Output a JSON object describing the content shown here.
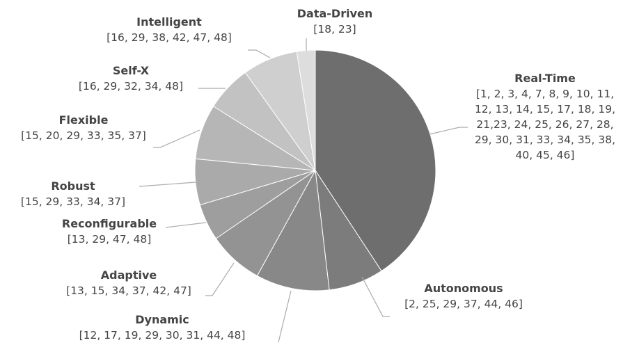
{
  "chart_data": {
    "type": "pie",
    "categories": [
      "Real-Time",
      "Autonomous",
      "Dynamic",
      "Adaptive",
      "Reconfigurable",
      "Robust",
      "Flexible",
      "Self-X",
      "Intelligent",
      "Data-Driven"
    ],
    "references": [
      "[1, 2, 3, 4, 7, 8, 9, 10, 11, 12, 13, 14, 15, 17, 18, 19, 21,23, 24, 25, 26, 27, 28, 29, 30, 31, 33, 34, 35, 38, 40, 45, 46]",
      "[2, 25, 29, 37, 44, 46]",
      "[12, 17, 19, 29, 30, 31, 44, 48]",
      "[13, 15, 34, 37, 42, 47]",
      "[13, 29, 47, 48]",
      "[15, 29, 33, 34, 37]",
      "[15, 20, 29, 33, 35, 37]",
      "[16, 29, 32, 34, 48]",
      "[16, 29, 38, 42, 47, 48]",
      "[18, 23]"
    ],
    "values": [
      33,
      6,
      8,
      6,
      4,
      5,
      6,
      5,
      6,
      2
    ],
    "colors": [
      "#6e6e6e",
      "#7c7c7c",
      "#888888",
      "#939393",
      "#9e9e9e",
      "#aaaaaa",
      "#b6b6b6",
      "#c2c2c2",
      "#cfcfcf",
      "#dddddd"
    ]
  }
}
